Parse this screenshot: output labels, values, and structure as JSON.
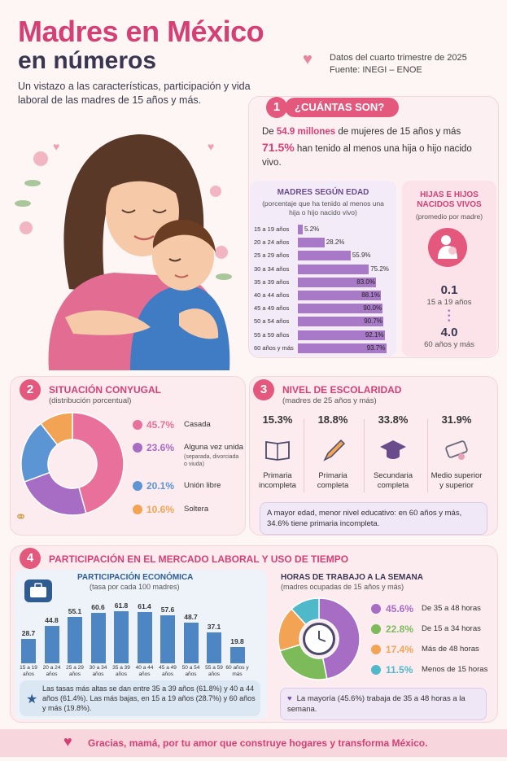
{
  "header": {
    "title_line1": "Madres en México",
    "title_line2": "en números",
    "subtitle": "Un vistazo a las características, participación y vida laboral de las madres de 15 años y más.",
    "source_line1": "Datos del cuarto trimestre de 2025",
    "source_line2": "Fuente: INEGI – ENOE"
  },
  "section1": {
    "number": "1",
    "title": "¿CUÁNTAS SON?",
    "line1_pre": "De ",
    "line1_bold": "54.9 millones",
    "line1_post": " de mujeres de 15 años y más",
    "line2_bold": "71.5%",
    "line2_post": " han tenido al menos una hija o hijo nacido vivo.",
    "age_title": "MADRES SEGÚN EDAD",
    "age_subtitle": "(porcentaje que ha tenido al menos una hija o hijo nacido vivo)",
    "kids_title": "HIJAS E HIJOS NACIDOS VIVOS",
    "kids_subtitle": "(promedio por madre)",
    "kids_val1": "0.1",
    "kids_lab1": "15 a 19 años",
    "kids_val2": "4.0",
    "kids_lab2": "60 años y más"
  },
  "section2": {
    "number": "2",
    "title": "SITUACIÓN CONYUGAL",
    "subtitle": "(distribución porcentual)",
    "items": [
      {
        "pct": "45.7%",
        "label": "Casada",
        "sub": "",
        "color": "#e8709a"
      },
      {
        "pct": "23.6%",
        "label": "Alguna vez unida",
        "sub": "(separada, divorciada o viuda)",
        "color": "#a76cc4"
      },
      {
        "pct": "20.1%",
        "label": "Unión libre",
        "sub": "",
        "color": "#5b95d3"
      },
      {
        "pct": "10.6%",
        "label": "Soltera",
        "sub": "",
        "color": "#f2a454"
      }
    ]
  },
  "section3": {
    "number": "3",
    "title": "NIVEL DE ESCOLARIDAD",
    "subtitle": "(madres de 25 años y más)",
    "items": [
      {
        "pct": "15.3%",
        "label": "Primaria incompleta",
        "icon": "book-icon"
      },
      {
        "pct": "18.8%",
        "label": "Primaria completa",
        "icon": "pencil-icon"
      },
      {
        "pct": "33.8%",
        "label": "Secundaria completa",
        "icon": "graduation-cap-icon"
      },
      {
        "pct": "31.9%",
        "label": "Medio superior y superior",
        "icon": "diploma-icon"
      }
    ],
    "note": "A mayor edad, menor nivel educativo: en 60 años y más, 34.6% tiene primaria incompleta."
  },
  "section4": {
    "number": "4",
    "title": "PARTICIPACIÓN EN EL MERCADO LABORAL Y USO DE TIEMPO",
    "econ_title": "PARTICIPACIÓN ECONÓMICA",
    "econ_subtitle": "(tasa por cada 100 madres)",
    "econ_note": "Las tasas más altas se dan entre 35 a 39 años (61.8%) y 40 a 44 años (61.4%). Las más bajas, en 15 a 19 años (28.7%) y 60 años y más (19.8%).",
    "hours_title": "HORAS DE TRABAJO A LA SEMANA",
    "hours_subtitle": "(madres ocupadas de 15 años y más)",
    "hours_items": [
      {
        "pct": "45.6%",
        "label": "De 35 a 48 horas",
        "color": "#a76cc4"
      },
      {
        "pct": "22.8%",
        "label": "De 15 a 34 horas",
        "color": "#7cba5a"
      },
      {
        "pct": "17.4%",
        "label": "Más de 48 horas",
        "color": "#f2a454"
      },
      {
        "pct": "11.5%",
        "label": "Menos de 15 horas",
        "color": "#4fb8c9"
      }
    ],
    "hours_note": "La mayoría (45.6%) trabaja de 35 a 48 horas a la semana."
  },
  "footer": {
    "text": "Gracias, mamá, por tu amor que construye hogares y transforma México."
  },
  "chart_data": [
    {
      "type": "bar",
      "orientation": "horizontal",
      "title": "MADRES SEGÚN EDAD",
      "categories": [
        "15 a 19 años",
        "20 a 24 años",
        "25 a 29 años",
        "30 a 34 años",
        "35 a 39 años",
        "40 a 44 años",
        "45 a 49 años",
        "50 a 54 años",
        "55 a 59 años",
        "60 años y más"
      ],
      "values": [
        5.2,
        28.2,
        55.9,
        75.2,
        83.0,
        88.1,
        90.0,
        90.7,
        92.1,
        93.7
      ],
      "value_labels": [
        "5.2%",
        "28.2%",
        "55.9%",
        "75.2%",
        "83.0%",
        "88.1%",
        "90.0%",
        "90.7%",
        "92.1%",
        "93.7%"
      ],
      "xlim": [
        0,
        100
      ],
      "color": "#a779c7"
    },
    {
      "type": "pie",
      "title": "SITUACIÓN CONYUGAL",
      "categories": [
        "Casada",
        "Alguna vez unida",
        "Unión libre",
        "Soltera"
      ],
      "values": [
        45.7,
        23.6,
        20.1,
        10.6
      ],
      "colors": [
        "#e8709a",
        "#a76cc4",
        "#5b95d3",
        "#f2a454"
      ]
    },
    {
      "type": "bar",
      "title": "PARTICIPACIÓN ECONÓMICA",
      "categories": [
        "15 a 19 años",
        "20 a 24 años",
        "25 a 29 años",
        "30 a 34 años",
        "35 a 39 años",
        "40 a 44 años",
        "45 a 49 años",
        "50 a 54 años",
        "55 a 59 años",
        "60 años y más"
      ],
      "values": [
        28.7,
        44.8,
        55.1,
        60.6,
        61.8,
        61.4,
        57.6,
        48.7,
        37.1,
        19.8
      ],
      "value_labels": [
        "28.7",
        "44.8",
        "55.1",
        "60.6",
        "61.8",
        "61.4",
        "57.6",
        "48.7",
        "37.1",
        "19.8"
      ],
      "ylim": [
        0,
        70
      ],
      "color": "#4e86c4"
    },
    {
      "type": "pie",
      "title": "HORAS DE TRABAJO A LA SEMANA",
      "categories": [
        "De 35 a 48 horas",
        "De 15 a 34 horas",
        "Más de 48 horas",
        "Menos de 15 horas"
      ],
      "values": [
        45.6,
        22.8,
        17.4,
        11.5
      ],
      "colors": [
        "#a76cc4",
        "#7cba5a",
        "#f2a454",
        "#4fb8c9"
      ]
    }
  ]
}
